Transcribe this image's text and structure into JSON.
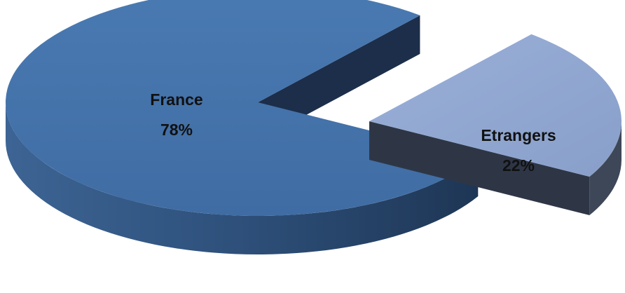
{
  "chart_data": {
    "type": "pie",
    "style": "3d-exploded",
    "title": "",
    "legend": "none",
    "slices": [
      {
        "label": "France",
        "value": 78,
        "value_label": "78%",
        "color": "#4472a8",
        "side_color": "#2f527d",
        "cut_color": "#1c2e4a",
        "exploded": false
      },
      {
        "label": "Etrangers",
        "value": 22,
        "value_label": "22%",
        "color": "#8fa5cf",
        "side_color": "#3e4758",
        "cut_color": "#2e3646",
        "exploded": true
      }
    ]
  }
}
